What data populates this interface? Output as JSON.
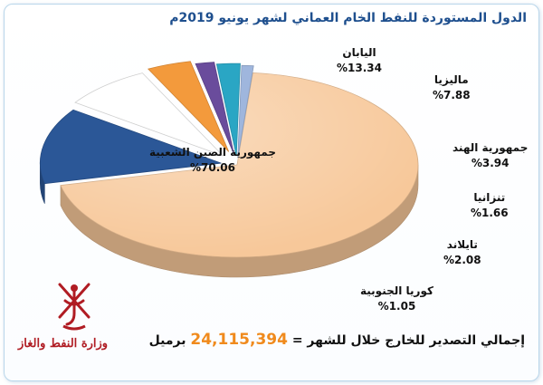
{
  "chart_data": {
    "type": "pie",
    "style": "3d-exploded",
    "title": "الدول المستوردة للنفط الخام العماني لشهر يونيو 2019م",
    "slices": [
      {
        "label": "جمهورية الصين الشعبية",
        "value": 70.06,
        "display": "%70.06",
        "color": "#f7c89a"
      },
      {
        "label": "اليابان",
        "value": 13.34,
        "display": "%13.34",
        "color": "#2b5797"
      },
      {
        "label": "ماليزيا",
        "value": 7.88,
        "display": "%7.88",
        "color": "#ffffff"
      },
      {
        "label": "جمهورية الهند",
        "value": 3.94,
        "display": "%3.94",
        "color": "#f39a3c"
      },
      {
        "label": "تنزانيا",
        "value": 1.66,
        "display": "%1.66",
        "color": "#6a4c9c"
      },
      {
        "label": "تايلاند",
        "value": 2.08,
        "display": "%2.08",
        "color": "#2aa6c4"
      },
      {
        "label": "كوريا الجنوبية",
        "value": 1.05,
        "display": "%1.05",
        "color": "#9fb6dd"
      }
    ],
    "legend": "none"
  },
  "footer": {
    "total_label": "إجمالي التصدير للخارج خلال للشهر =",
    "total_value": "24,115,394",
    "total_unit": "برميل",
    "ministry": "وزارة النفط والغاز"
  },
  "colors": {
    "title": "#1e4f8e",
    "accent": "#f08a1c",
    "ministry": "#b01c23"
  }
}
